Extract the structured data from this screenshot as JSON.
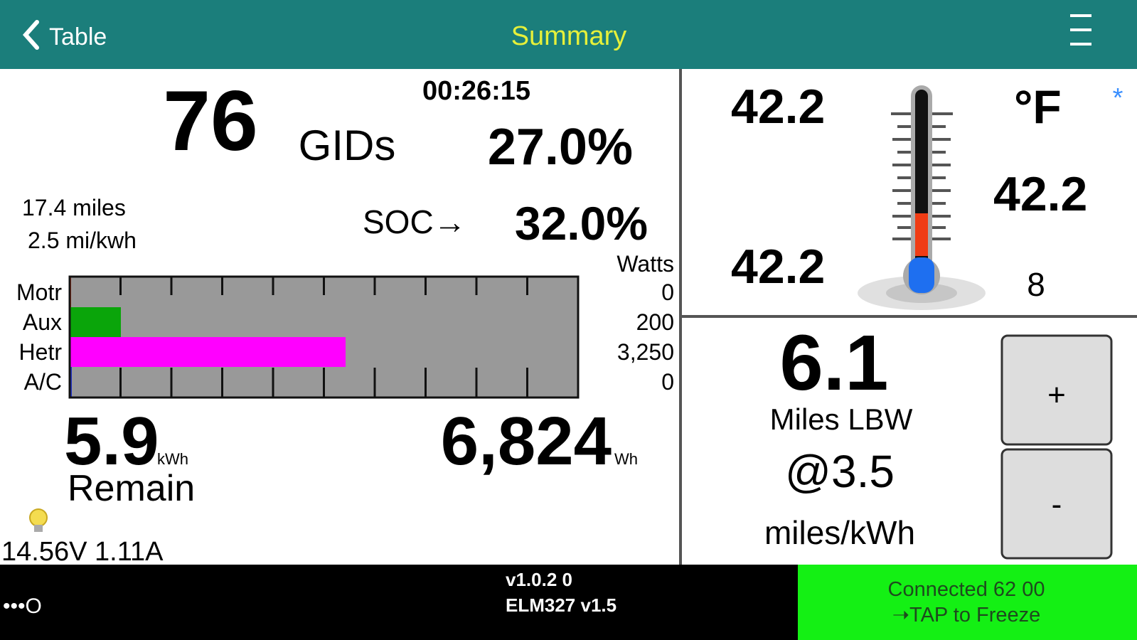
{
  "header": {
    "back": "Table",
    "title": "Summary"
  },
  "left": {
    "elapsed": "00:26:15",
    "gids": "76",
    "gids_label": "GIDs",
    "gids_percent": "27.0%",
    "range": "17.4 miles",
    "efficiency": "2.5 mi/kwh",
    "soc_label": "SOC→",
    "soc_percent": "32.0%",
    "watts_title": "Watts",
    "power": {
      "labels": [
        "Motr",
        "Aux",
        "Hetr",
        "A/C"
      ],
      "watts": [
        "0",
        "200",
        "3,250",
        "0"
      ]
    },
    "energy": "5.9",
    "energy_unit": "kWh",
    "remain_label": "Remain",
    "wh": "6,824",
    "wh_unit": "Wh",
    "battery": "14.56V 1.11A"
  },
  "temperature": {
    "left_top": "42.2",
    "left_bottom": "42.2",
    "right": "42.2",
    "unit": "°F",
    "count": "8",
    "marker": "*"
  },
  "lbw": {
    "miles": "6.1",
    "miles_label": "Miles LBW",
    "rate": "@3.5",
    "rate_unit": "miles/kWh",
    "plus": "+",
    "minus": "-"
  },
  "footer": {
    "signal": "•••O",
    "version": "v1.0.2 0",
    "adapter": "ELM327 v1.5",
    "status": "Connected 62 00",
    "action": "➝TAP to Freeze"
  }
}
